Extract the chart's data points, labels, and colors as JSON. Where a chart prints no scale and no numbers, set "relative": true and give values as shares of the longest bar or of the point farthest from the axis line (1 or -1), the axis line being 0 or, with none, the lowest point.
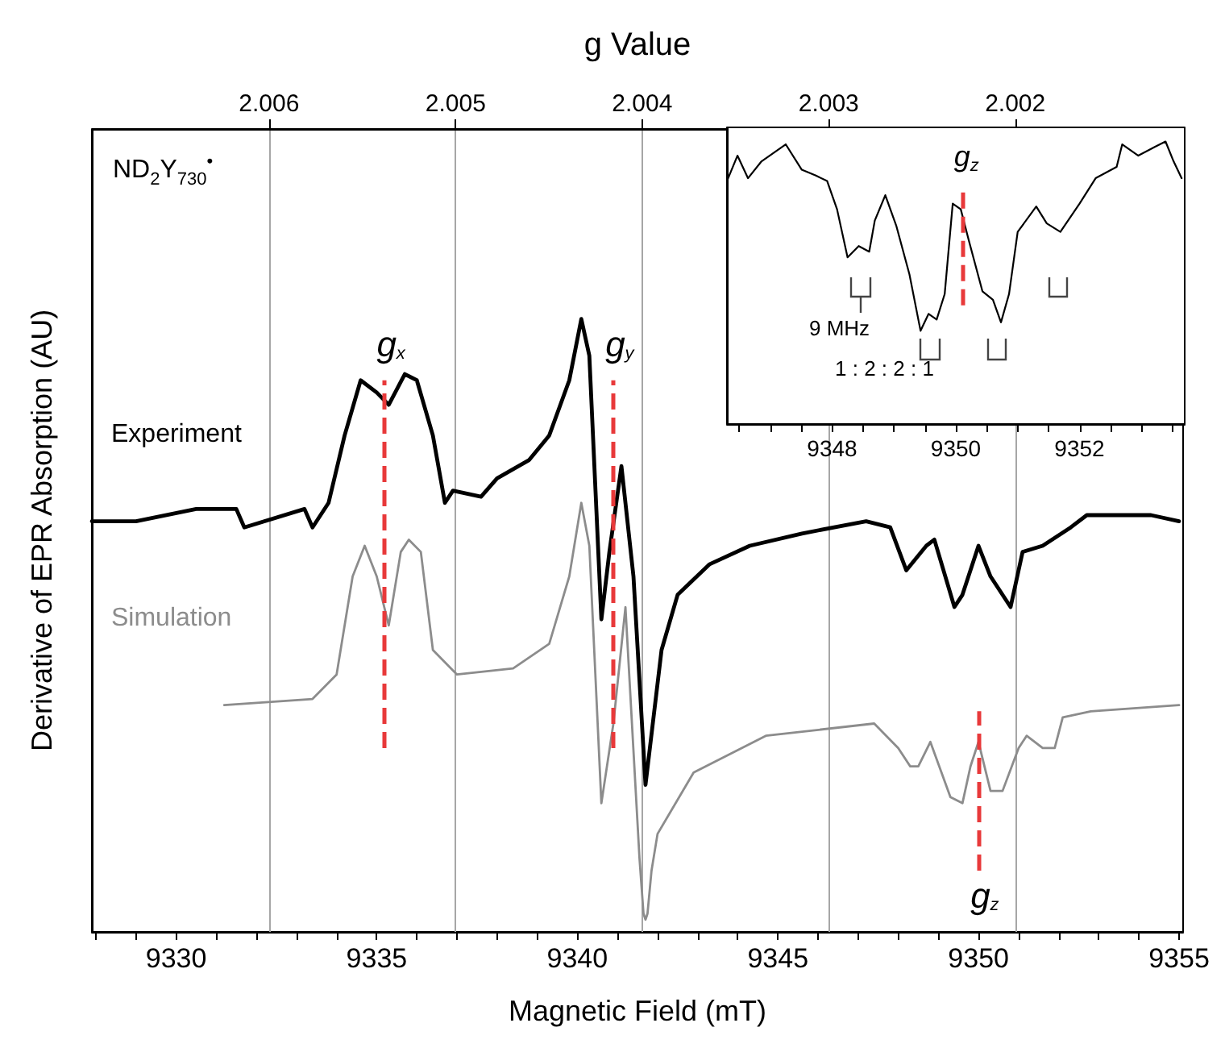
{
  "chart_data": [
    {
      "type": "line",
      "xlabel": "Magnetic Field (mT)",
      "x2label": "g Value",
      "ylabel": "Derivative of EPR Absorption (AU)",
      "relative": true,
      "xlim": [
        9327.9,
        9355.1
      ],
      "xticks": [
        {
          "value": 9328,
          "label": null
        },
        {
          "value": 9329,
          "label": null
        },
        9330,
        {
          "value": 9331,
          "label": null
        },
        {
          "value": 9332,
          "label": null
        },
        {
          "value": 9333,
          "label": null
        },
        {
          "value": 9334,
          "label": null
        },
        9335,
        {
          "value": 9336,
          "label": null
        },
        {
          "value": 9337,
          "label": null
        },
        {
          "value": 9338,
          "label": null
        },
        {
          "value": 9339,
          "label": null
        },
        9340,
        {
          "value": 9341,
          "label": null
        },
        {
          "value": 9342,
          "label": null
        },
        {
          "value": 9343,
          "label": null
        },
        {
          "value": 9344,
          "label": null
        },
        9345,
        {
          "value": 9346,
          "label": null
        },
        {
          "value": 9347,
          "label": null
        },
        {
          "value": 9348,
          "label": null
        },
        {
          "value": 9349,
          "label": null
        },
        9350,
        {
          "value": 9351,
          "label": null
        },
        {
          "value": 9352,
          "label": null
        },
        {
          "value": 9353,
          "label": null
        },
        {
          "value": 9354,
          "label": null
        },
        9355
      ],
      "x2lim": [
        2.00695,
        2.0011
      ],
      "x2ticks": [
        2.006,
        2.005,
        2.004,
        2.003,
        2.002
      ],
      "grid": "x",
      "legend": false,
      "line_style": "solid",
      "series": [
        {
          "name": "Experiment",
          "color": "#000000",
          "x": [
            9327.9,
            9329.0,
            9330.5,
            9331.5,
            9331.7,
            9333.2,
            9333.4,
            9333.8,
            9334.2,
            9334.6,
            9335.0,
            9335.3,
            9335.7,
            9336.0,
            9336.4,
            9336.7,
            9336.9,
            9337.6,
            9338.0,
            9338.8,
            9339.3,
            9339.8,
            9340.1,
            9340.3,
            9340.6,
            9340.8,
            9341.1,
            9341.4,
            9341.7,
            9342.1,
            9342.5,
            9343.3,
            9344.3,
            9345.6,
            9347.2,
            9347.8,
            9348.2,
            9348.7,
            9348.9,
            9349.4,
            9349.6,
            9350.0,
            9350.3,
            9350.8,
            9351.1,
            9351.6,
            9352.3,
            9352.7,
            9354.3,
            9355.0
          ],
          "values": [
            0.67,
            0.67,
            0.69,
            0.69,
            0.66,
            0.69,
            0.66,
            0.7,
            0.81,
            0.9,
            0.88,
            0.86,
            0.91,
            0.9,
            0.81,
            0.7,
            0.72,
            0.71,
            0.74,
            0.77,
            0.81,
            0.9,
            1.0,
            0.94,
            0.51,
            0.62,
            0.76,
            0.58,
            0.24,
            0.46,
            0.55,
            0.6,
            0.63,
            0.65,
            0.67,
            0.66,
            0.59,
            0.63,
            0.64,
            0.53,
            0.55,
            0.63,
            0.58,
            0.53,
            0.62,
            0.63,
            0.66,
            0.68,
            0.68,
            0.67
          ]
        },
        {
          "name": "Simulation",
          "color": "#8c8c8c",
          "x": [
            9331.2,
            9333.4,
            9334.0,
            9334.4,
            9334.7,
            9335.0,
            9335.3,
            9335.6,
            9335.8,
            9336.1,
            9336.4,
            9337.0,
            9338.4,
            9339.3,
            9339.8,
            9340.1,
            9340.3,
            9340.6,
            9340.9,
            9341.2,
            9341.55,
            9341.65,
            9341.7,
            9341.75,
            9341.85,
            9342.0,
            9342.9,
            9344.7,
            9347.4,
            9348.0,
            9348.3,
            9348.5,
            9348.8,
            9349.3,
            9349.6,
            9349.8,
            9350.0,
            9350.3,
            9350.6,
            9351.0,
            9351.2,
            9351.6,
            9351.9,
            9352.1,
            9352.8,
            9355.0
          ],
          "values": [
            0.37,
            0.38,
            0.42,
            0.58,
            0.63,
            0.58,
            0.5,
            0.62,
            0.64,
            0.62,
            0.46,
            0.42,
            0.43,
            0.47,
            0.58,
            0.7,
            0.63,
            0.21,
            0.34,
            0.53,
            0.12,
            0.03,
            0.02,
            0.03,
            0.1,
            0.16,
            0.26,
            0.32,
            0.34,
            0.3,
            0.27,
            0.27,
            0.31,
            0.22,
            0.21,
            0.27,
            0.31,
            0.23,
            0.23,
            0.3,
            0.32,
            0.3,
            0.3,
            0.35,
            0.36,
            0.37
          ]
        }
      ],
      "ref_lines": [
        {
          "axis": "x",
          "value": 9335.2,
          "label": "g$_{x}$",
          "color": "#e8393a",
          "line_style": "dashed"
        },
        {
          "axis": "x",
          "value": 9340.9,
          "label": "g$_{y}$",
          "color": "#e8393a",
          "line_style": "dashed"
        },
        {
          "axis": "x",
          "value": 9350.0,
          "label": "g$_{z}$",
          "color": "#e8393a",
          "line_style": "dashed"
        }
      ],
      "annotations": [
        "ND$_{2}$Y$_{730}$$^{•}$"
      ]
    },
    {
      "type": "line",
      "relative": true,
      "tick_labels": "x",
      "legend": false,
      "line_style": "solid",
      "xlim": [
        9346.3,
        9353.7
      ],
      "xticks": [
        {
          "value": 9346.5,
          "label": null
        },
        {
          "value": 9347,
          "label": null
        },
        {
          "value": 9347.5,
          "label": null
        },
        9348,
        {
          "value": 9348.5,
          "label": null
        },
        {
          "value": 9349,
          "label": null
        },
        {
          "value": 9349.5,
          "label": null
        },
        9350,
        {
          "value": 9350.5,
          "label": null
        },
        {
          "value": 9351,
          "label": null
        },
        {
          "value": 9351.5,
          "label": null
        },
        9352,
        {
          "value": 9352.5,
          "label": null
        },
        {
          "value": 9353,
          "label": null
        },
        {
          "value": 9353.5,
          "label": null
        }
      ],
      "series": [
        {
          "color": "#000000",
          "x": [
            9346.3,
            9346.47,
            9346.64,
            9346.86,
            9347.25,
            9347.51,
            9347.73,
            9347.92,
            9348.08,
            9348.25,
            9348.43,
            9348.6,
            9348.69,
            9348.86,
            9349.04,
            9349.25,
            9349.43,
            9349.56,
            9349.69,
            9349.82,
            9349.95,
            9350.08,
            9350.21,
            9350.43,
            9350.6,
            9350.73,
            9350.86,
            9351.0,
            9351.3,
            9351.47,
            9351.69,
            9352.0,
            9352.26,
            9352.6,
            9352.69,
            9352.95,
            9353.21,
            9353.39,
            9353.52,
            9353.65
          ],
          "values": [
            0.86,
            0.95,
            0.87,
            0.93,
            0.99,
            0.9,
            0.88,
            0.86,
            0.76,
            0.59,
            0.63,
            0.61,
            0.72,
            0.81,
            0.7,
            0.53,
            0.33,
            0.39,
            0.37,
            0.46,
            0.78,
            0.76,
            0.65,
            0.47,
            0.44,
            0.36,
            0.46,
            0.68,
            0.77,
            0.71,
            0.68,
            0.78,
            0.87,
            0.91,
            0.99,
            0.95,
            0.98,
            1.0,
            0.93,
            0.87
          ]
        }
      ],
      "ref_lines": [
        {
          "axis": "x",
          "value": 9350.1,
          "label": "g$_{z}$",
          "color": "#e8393a",
          "line_style": "dashed"
        }
      ],
      "annotations": [
        "9 MHz",
        "1 : 2 : 2 : 1"
      ]
    }
  ]
}
